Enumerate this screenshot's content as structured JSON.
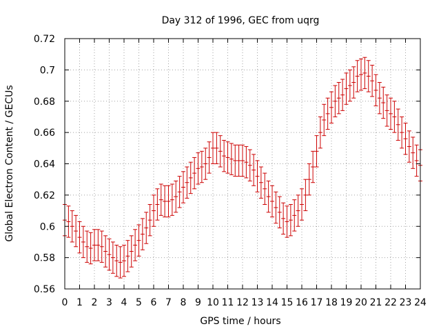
{
  "chart_data": {
    "type": "scatter",
    "title": "Day 312 of 1996, GEC from uqrg",
    "xlabel": "GPS time / hours",
    "ylabel": "Global Electron Content / GECUs",
    "xlim": [
      0,
      24
    ],
    "ylim": [
      0.56,
      0.72
    ],
    "x_ticks": [
      0,
      1,
      2,
      3,
      4,
      5,
      6,
      7,
      8,
      9,
      10,
      11,
      12,
      13,
      14,
      15,
      16,
      17,
      18,
      19,
      20,
      21,
      22,
      23,
      24
    ],
    "x_tick_labels": [
      "0",
      "1",
      "2",
      "3",
      "4",
      "5",
      "6",
      "7",
      "8",
      "9",
      "10",
      "11",
      "12",
      "13",
      "14",
      "15",
      "16",
      "17",
      "18",
      "19",
      "20",
      "21",
      "22",
      "23",
      "24"
    ],
    "y_ticks": [
      0.56,
      0.58,
      0.6,
      0.62,
      0.64,
      0.66,
      0.68,
      0.7,
      0.72
    ],
    "y_tick_labels": [
      "0.56",
      "0.58",
      "0.6",
      "0.62",
      "0.64",
      "0.66",
      "0.68",
      "0.7",
      "0.72"
    ],
    "grid": true,
    "series": [
      {
        "name": "GEC",
        "color": "#cc0000",
        "error": 0.01,
        "x": [
          0,
          0.25,
          0.5,
          0.75,
          1,
          1.25,
          1.5,
          1.75,
          2,
          2.25,
          2.5,
          2.75,
          3,
          3.25,
          3.5,
          3.75,
          4,
          4.25,
          4.5,
          4.75,
          5,
          5.25,
          5.5,
          5.75,
          6,
          6.25,
          6.5,
          6.75,
          7,
          7.25,
          7.5,
          7.75,
          8,
          8.25,
          8.5,
          8.75,
          9,
          9.25,
          9.5,
          9.75,
          10,
          10.25,
          10.5,
          10.75,
          11,
          11.25,
          11.5,
          11.75,
          12,
          12.25,
          12.5,
          12.75,
          13,
          13.25,
          13.5,
          13.75,
          14,
          14.25,
          14.5,
          14.75,
          15,
          15.25,
          15.5,
          15.75,
          16,
          16.25,
          16.5,
          16.75,
          17,
          17.25,
          17.5,
          17.75,
          18,
          18.25,
          18.5,
          18.75,
          19,
          19.25,
          19.5,
          19.75,
          20,
          20.25,
          20.5,
          20.75,
          21,
          21.25,
          21.5,
          21.75,
          22,
          22.25,
          22.5,
          22.75,
          23,
          23.25,
          23.5,
          23.75,
          24
        ],
        "y": [
          0.604,
          0.603,
          0.6,
          0.597,
          0.593,
          0.59,
          0.587,
          0.586,
          0.588,
          0.588,
          0.587,
          0.584,
          0.582,
          0.58,
          0.578,
          0.577,
          0.578,
          0.581,
          0.584,
          0.588,
          0.591,
          0.595,
          0.599,
          0.604,
          0.61,
          0.614,
          0.617,
          0.616,
          0.616,
          0.617,
          0.619,
          0.622,
          0.625,
          0.628,
          0.631,
          0.634,
          0.637,
          0.638,
          0.64,
          0.644,
          0.65,
          0.65,
          0.648,
          0.645,
          0.644,
          0.643,
          0.642,
          0.642,
          0.642,
          0.641,
          0.639,
          0.636,
          0.632,
          0.628,
          0.624,
          0.619,
          0.616,
          0.612,
          0.609,
          0.605,
          0.603,
          0.604,
          0.607,
          0.61,
          0.614,
          0.62,
          0.63,
          0.638,
          0.648,
          0.66,
          0.668,
          0.672,
          0.676,
          0.68,
          0.682,
          0.684,
          0.688,
          0.69,
          0.692,
          0.696,
          0.697,
          0.698,
          0.696,
          0.693,
          0.687,
          0.682,
          0.679,
          0.674,
          0.672,
          0.67,
          0.665,
          0.66,
          0.656,
          0.651,
          0.647,
          0.642,
          0.639
        ]
      }
    ]
  }
}
